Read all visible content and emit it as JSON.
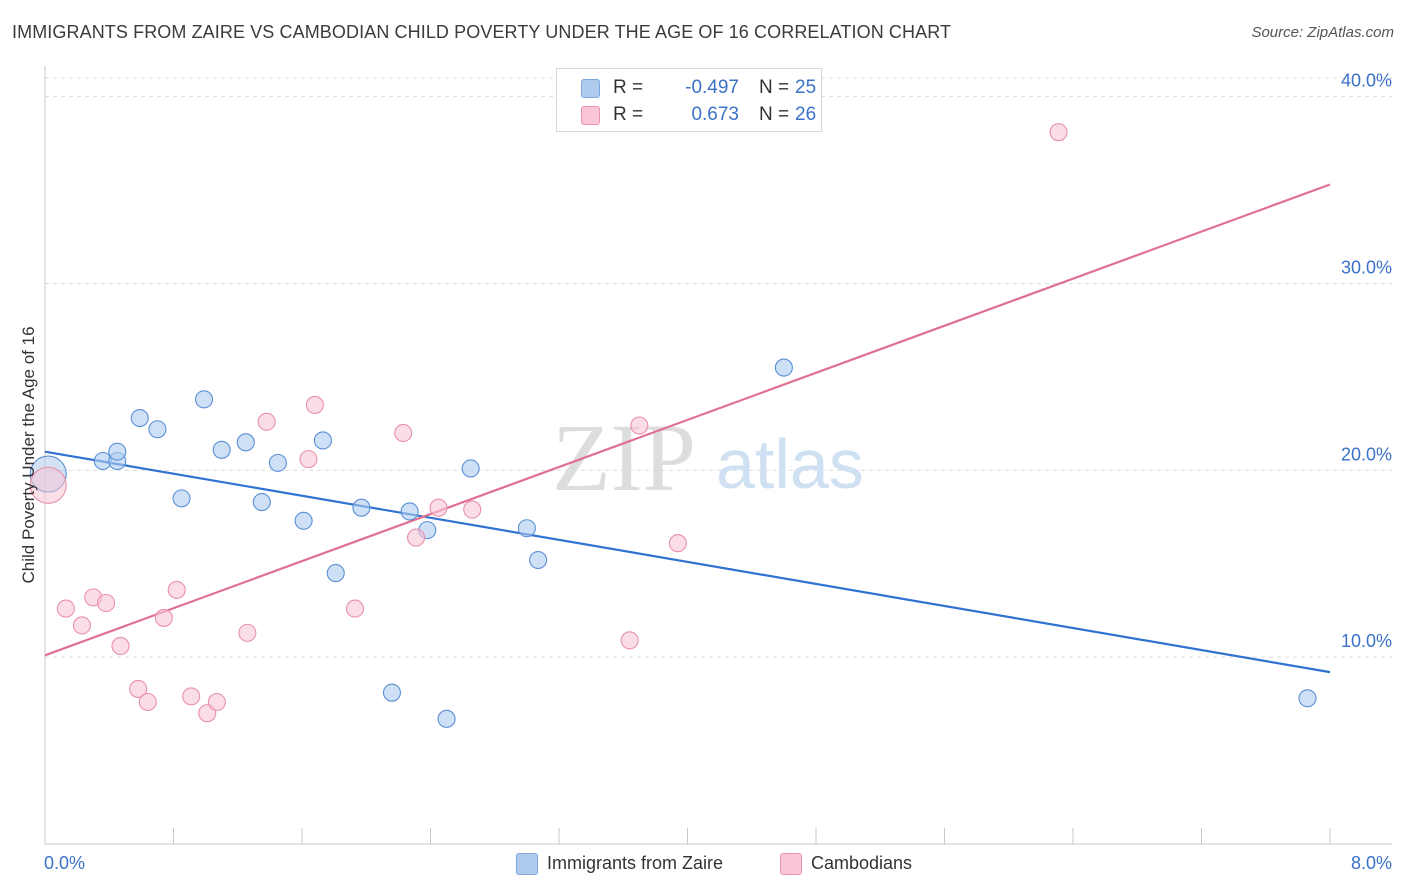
{
  "title": "IMMIGRANTS FROM ZAIRE VS CAMBODIAN CHILD POVERTY UNDER THE AGE OF 16 CORRELATION CHART",
  "source": "Source: ZipAtlas.com",
  "watermark": {
    "zip": "ZIP",
    "atlas": "atlas"
  },
  "legend": {
    "rows": [
      {
        "r_label": "R =",
        "r_value": "-0.497",
        "n_label": "N =",
        "n_value": "25",
        "color": "#aecbee",
        "border": "#7aa7dd"
      },
      {
        "r_label": "R =",
        "r_value": "0.673",
        "n_label": "N =",
        "n_value": "26",
        "color": "#f8c6d6",
        "border": "#eb94b2"
      }
    ]
  },
  "bottom_legend": [
    {
      "label": "Immigrants from Zaire",
      "color": "#aecbee",
      "border": "#7aa7dd"
    },
    {
      "label": "Cambodians",
      "color": "#f8c6d6",
      "border": "#eb94b2"
    }
  ],
  "chart_data": {
    "type": "scatter",
    "title": "IMMIGRANTS FROM ZAIRE VS CAMBODIAN CHILD POVERTY UNDER THE AGE OF 16 CORRELATION CHART",
    "xlabel": "",
    "ylabel": "Child Poverty Under the Age of 16",
    "xlim": [
      0,
      8
    ],
    "ylim": [
      0,
      41
    ],
    "x_tick_labels": [
      {
        "value": 0,
        "label": "0.0%"
      },
      {
        "value": 8,
        "label": "8.0%"
      }
    ],
    "y_tick_labels": [
      {
        "value": 10,
        "label": "10.0%"
      },
      {
        "value": 20,
        "label": "20.0%"
      },
      {
        "value": 30,
        "label": "30.0%"
      },
      {
        "value": 40,
        "label": "40.0%"
      }
    ],
    "grid": true,
    "legend_position": "top-center",
    "series": [
      {
        "name": "Immigrants from Zaire",
        "color": "#5b8fd6",
        "fill": "#aecbee",
        "line_color": "#2f72d1",
        "trend": {
          "x": [
            0,
            8
          ],
          "y": [
            21.0,
            9.2
          ]
        },
        "points": [
          {
            "x": 0.02,
            "y": 19.8,
            "big": true
          },
          {
            "x": 0.36,
            "y": 20.5
          },
          {
            "x": 0.45,
            "y": 20.5
          },
          {
            "x": 0.45,
            "y": 21.0
          },
          {
            "x": 0.59,
            "y": 22.8
          },
          {
            "x": 0.7,
            "y": 22.2
          },
          {
            "x": 0.85,
            "y": 18.5
          },
          {
            "x": 0.99,
            "y": 23.8
          },
          {
            "x": 1.1,
            "y": 21.1
          },
          {
            "x": 1.25,
            "y": 21.5
          },
          {
            "x": 1.35,
            "y": 18.3
          },
          {
            "x": 1.45,
            "y": 20.4
          },
          {
            "x": 1.61,
            "y": 17.3
          },
          {
            "x": 1.73,
            "y": 21.6
          },
          {
            "x": 1.81,
            "y": 14.5
          },
          {
            "x": 1.97,
            "y": 18.0
          },
          {
            "x": 2.16,
            "y": 8.1
          },
          {
            "x": 2.27,
            "y": 17.8
          },
          {
            "x": 2.38,
            "y": 16.8
          },
          {
            "x": 2.5,
            "y": 6.7
          },
          {
            "x": 2.65,
            "y": 20.1
          },
          {
            "x": 3.0,
            "y": 16.9
          },
          {
            "x": 3.07,
            "y": 15.2
          },
          {
            "x": 4.6,
            "y": 25.5
          },
          {
            "x": 7.86,
            "y": 7.8
          }
        ]
      },
      {
        "name": "Cambodians",
        "color": "#e890ad",
        "fill": "#f8c6d6",
        "line_color": "#e0708f",
        "trend": {
          "x": [
            0,
            8
          ],
          "y": [
            10.1,
            35.3
          ]
        },
        "points": [
          {
            "x": 0.02,
            "y": 19.2,
            "big": true
          },
          {
            "x": 0.13,
            "y": 12.6
          },
          {
            "x": 0.23,
            "y": 11.7
          },
          {
            "x": 0.3,
            "y": 13.2
          },
          {
            "x": 0.38,
            "y": 12.9
          },
          {
            "x": 0.47,
            "y": 10.6
          },
          {
            "x": 0.58,
            "y": 8.3
          },
          {
            "x": 0.64,
            "y": 7.6
          },
          {
            "x": 0.74,
            "y": 12.1
          },
          {
            "x": 0.82,
            "y": 13.6
          },
          {
            "x": 0.91,
            "y": 7.9
          },
          {
            "x": 1.01,
            "y": 7.0
          },
          {
            "x": 1.07,
            "y": 7.6
          },
          {
            "x": 1.26,
            "y": 11.3
          },
          {
            "x": 1.38,
            "y": 22.6
          },
          {
            "x": 1.64,
            "y": 20.6
          },
          {
            "x": 1.68,
            "y": 23.5
          },
          {
            "x": 1.93,
            "y": 12.6
          },
          {
            "x": 2.23,
            "y": 22.0
          },
          {
            "x": 2.31,
            "y": 16.4
          },
          {
            "x": 2.45,
            "y": 18.0
          },
          {
            "x": 2.66,
            "y": 17.9
          },
          {
            "x": 3.64,
            "y": 10.9
          },
          {
            "x": 3.7,
            "y": 22.4
          },
          {
            "x": 3.94,
            "y": 16.1
          },
          {
            "x": 6.31,
            "y": 38.1
          }
        ]
      }
    ]
  }
}
